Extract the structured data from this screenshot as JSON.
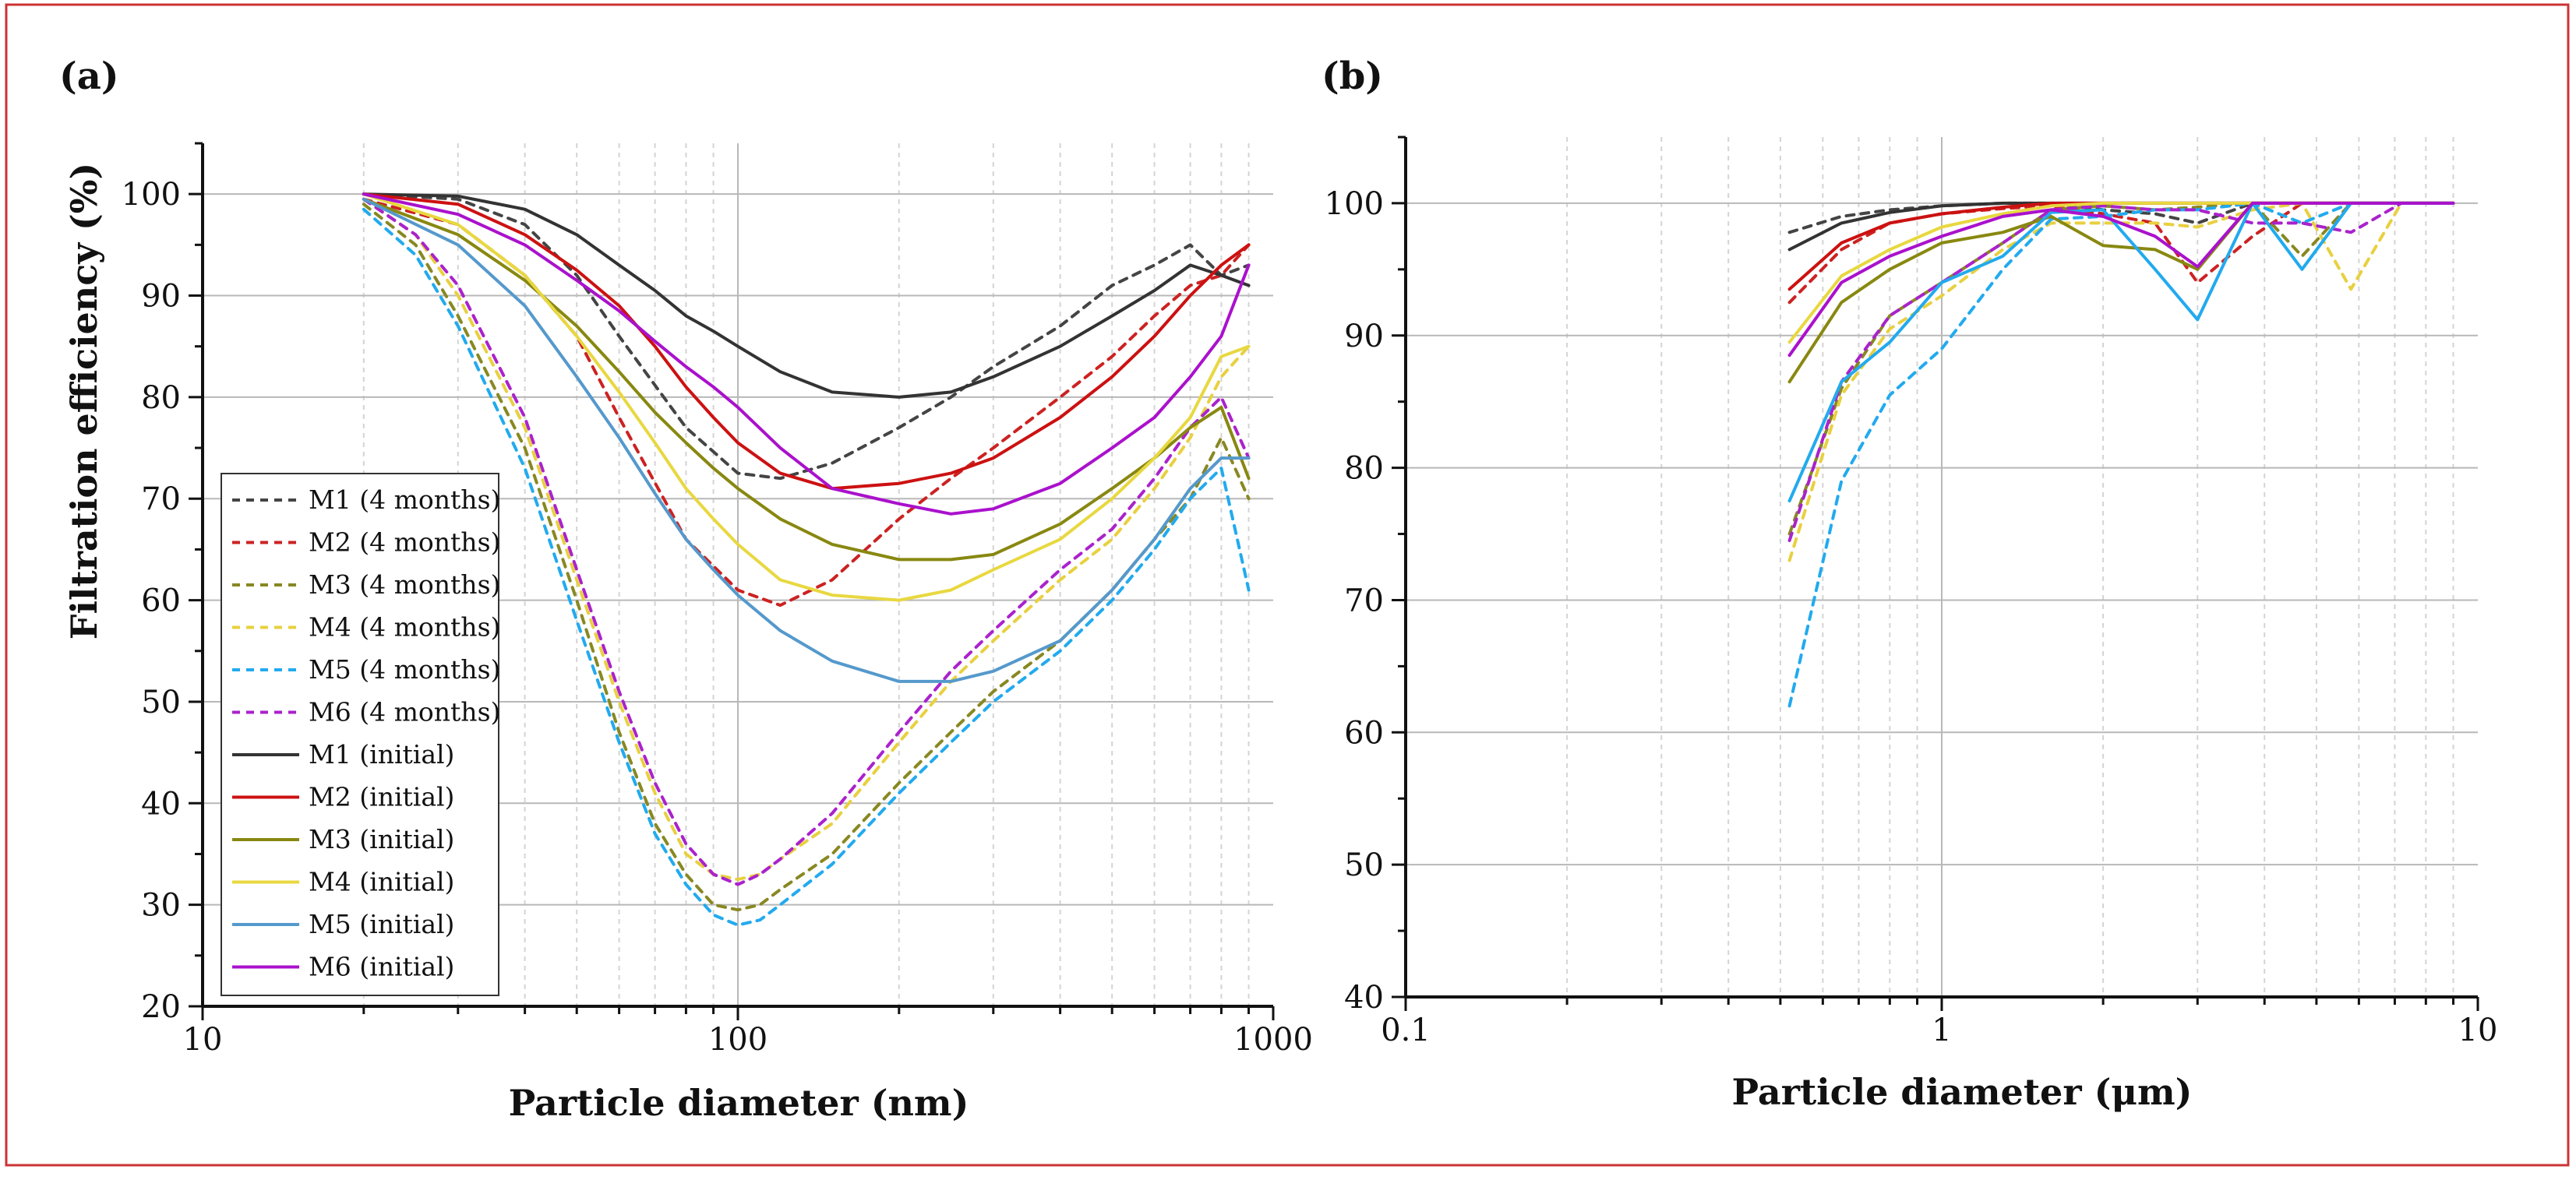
{
  "figure": {
    "border_color": "#cc3333"
  },
  "chart_data": [
    {
      "panel_label": "(a)",
      "type": "line",
      "xscale": "log",
      "xlim": [
        10,
        1000
      ],
      "ylim": [
        20,
        105
      ],
      "xlabel": "Particle diameter (nm)",
      "ylabel": "Filtration efficiency (%)",
      "xticks": [
        10,
        100,
        1000
      ],
      "xtick_labels": [
        "10",
        "100",
        "1000"
      ],
      "yticks": [
        20,
        30,
        40,
        50,
        60,
        70,
        80,
        90,
        100
      ],
      "ytick_labels": [
        "20",
        "30",
        "40",
        "50",
        "60",
        "70",
        "80",
        "90",
        "100"
      ],
      "grid": true,
      "legend_position": "lower-left",
      "series": [
        {
          "name": "M1 (4 months)",
          "color": "#444444",
          "style": "dashed",
          "x": [
            20,
            30,
            40,
            50,
            60,
            80,
            100,
            120,
            150,
            200,
            250,
            300,
            400,
            500,
            600,
            700,
            800,
            900
          ],
          "y": [
            100,
            99.5,
            97,
            92,
            86,
            77,
            72.5,
            72,
            73.5,
            77,
            80,
            83,
            87,
            91,
            93,
            95,
            92,
            93
          ]
        },
        {
          "name": "M2 (4 months)",
          "color": "#cc2222",
          "style": "dashed",
          "x": [
            20,
            30,
            40,
            50,
            60,
            80,
            100,
            120,
            150,
            200,
            250,
            300,
            400,
            500,
            600,
            700,
            800,
            900
          ],
          "y": [
            99.5,
            97,
            92,
            86,
            78,
            66,
            61,
            59.5,
            62,
            68,
            72,
            75,
            80,
            84,
            88,
            91,
            92,
            95
          ]
        },
        {
          "name": "M3 (4 months)",
          "color": "#888822",
          "style": "dashed",
          "x": [
            20,
            25,
            30,
            40,
            50,
            60,
            70,
            80,
            90,
            100,
            110,
            120,
            150,
            200,
            250,
            300,
            400,
            500,
            600,
            700,
            800,
            900
          ],
          "y": [
            99,
            95,
            88,
            75,
            60,
            47,
            38,
            33,
            30,
            29.5,
            30,
            31.5,
            35,
            42,
            47,
            51,
            56,
            61,
            66,
            70,
            76,
            70
          ]
        },
        {
          "name": "M4 (4 months)",
          "color": "#e8d040",
          "style": "dashed",
          "x": [
            20,
            25,
            30,
            40,
            50,
            60,
            70,
            80,
            90,
            100,
            110,
            120,
            150,
            200,
            250,
            300,
            400,
            500,
            600,
            700,
            800,
            900
          ],
          "y": [
            99.5,
            96,
            90,
            77,
            62,
            50,
            41,
            35,
            33,
            32.5,
            33,
            34.5,
            38,
            46,
            52,
            56,
            62,
            66,
            71,
            76,
            82,
            85
          ]
        },
        {
          "name": "M5 (4 months)",
          "color": "#22aaee",
          "style": "dashed",
          "x": [
            20,
            25,
            30,
            40,
            50,
            60,
            70,
            80,
            90,
            100,
            110,
            120,
            150,
            200,
            250,
            300,
            400,
            500,
            600,
            700,
            800,
            900
          ],
          "y": [
            98.5,
            94,
            87,
            73,
            58,
            46,
            37,
            32,
            29,
            28,
            28.5,
            30,
            34,
            41,
            46,
            50,
            55,
            60,
            65,
            70,
            73,
            61
          ]
        },
        {
          "name": "M6 (4 months)",
          "color": "#aa22cc",
          "style": "dashed",
          "x": [
            20,
            25,
            30,
            40,
            50,
            60,
            70,
            80,
            90,
            100,
            110,
            120,
            150,
            200,
            250,
            300,
            400,
            500,
            600,
            700,
            800,
            900
          ],
          "y": [
            99.5,
            96,
            91,
            78,
            63,
            51,
            42,
            36,
            33,
            32,
            33,
            34.5,
            39,
            47,
            53,
            57,
            63,
            67,
            72,
            77,
            80,
            74
          ]
        },
        {
          "name": "M1 (initial)",
          "color": "#333333",
          "style": "solid",
          "x": [
            20,
            30,
            40,
            50,
            60,
            70,
            80,
            90,
            100,
            120,
            150,
            200,
            250,
            300,
            400,
            500,
            600,
            700,
            800,
            900
          ],
          "y": [
            100,
            99.8,
            98.5,
            96,
            93,
            90.5,
            88,
            86.5,
            85,
            82.5,
            80.5,
            80,
            80.5,
            82,
            85,
            88,
            90.5,
            93,
            92,
            91
          ]
        },
        {
          "name": "M2 (initial)",
          "color": "#cc1111",
          "style": "solid",
          "x": [
            20,
            30,
            40,
            50,
            60,
            70,
            80,
            90,
            100,
            120,
            150,
            200,
            250,
            300,
            400,
            500,
            600,
            700,
            800,
            900
          ],
          "y": [
            100,
            99,
            96,
            92.5,
            89,
            85,
            81,
            78,
            75.5,
            72.5,
            71,
            71.5,
            72.5,
            74,
            78,
            82,
            86,
            90,
            93,
            95
          ]
        },
        {
          "name": "M3 (initial)",
          "color": "#888811",
          "style": "solid",
          "x": [
            20,
            30,
            40,
            50,
            60,
            70,
            80,
            90,
            100,
            120,
            150,
            200,
            250,
            300,
            400,
            500,
            600,
            700,
            800,
            900
          ],
          "y": [
            99.5,
            96,
            91.5,
            87,
            82.5,
            78.5,
            75.5,
            73,
            71,
            68,
            65.5,
            64,
            64,
            64.5,
            67.5,
            71,
            74,
            77,
            79,
            72
          ]
        },
        {
          "name": "M4 (initial)",
          "color": "#e8d840",
          "style": "solid",
          "x": [
            20,
            30,
            40,
            50,
            60,
            70,
            80,
            90,
            100,
            120,
            150,
            200,
            250,
            300,
            400,
            500,
            600,
            700,
            800,
            900
          ],
          "y": [
            100,
            97,
            92,
            86,
            80.5,
            75.5,
            71,
            68,
            65.5,
            62,
            60.5,
            60,
            61,
            63,
            66,
            70,
            74,
            78,
            84,
            85
          ]
        },
        {
          "name": "M5 (initial)",
          "color": "#5599cc",
          "style": "solid",
          "x": [
            20,
            30,
            40,
            50,
            60,
            70,
            80,
            90,
            100,
            120,
            150,
            200,
            250,
            300,
            400,
            500,
            600,
            700,
            800,
            900
          ],
          "y": [
            99.5,
            95,
            89,
            82,
            76,
            70.5,
            66,
            63,
            60.5,
            57,
            54,
            52,
            52,
            53,
            56,
            61,
            66,
            71,
            74,
            74
          ]
        },
        {
          "name": "M6 (initial)",
          "color": "#aa11cc",
          "style": "solid",
          "x": [
            20,
            30,
            40,
            50,
            60,
            70,
            80,
            90,
            100,
            120,
            150,
            200,
            250,
            300,
            400,
            500,
            600,
            700,
            800,
            900
          ],
          "y": [
            100,
            98,
            95,
            91.5,
            88.5,
            85.5,
            83,
            81,
            79,
            75,
            71,
            69.5,
            68.5,
            69,
            71.5,
            75,
            78,
            82,
            86,
            93
          ]
        }
      ],
      "legend": [
        "M1 (4 months)",
        "M2 (4 months)",
        "M3 (4 months)",
        "M4 (4 months)",
        "M5 (4 months)",
        "M6 (4 months)",
        "M1 (initial)",
        "M2 (initial)",
        "M3 (initial)",
        "M4 (initial)",
        "M5 (initial)",
        "M6 (initial)"
      ]
    },
    {
      "panel_label": "(b)",
      "type": "line",
      "xscale": "log",
      "xlim": [
        0.1,
        10
      ],
      "ylim": [
        40,
        105
      ],
      "xlabel": "Particle diameter (μm)",
      "ylabel": "",
      "xticks": [
        0.1,
        1,
        10
      ],
      "xtick_labels": [
        "0.1",
        "1",
        "10"
      ],
      "yticks": [
        40,
        50,
        60,
        70,
        80,
        90,
        100
      ],
      "ytick_labels": [
        "40",
        "50",
        "60",
        "70",
        "80",
        "90",
        "100"
      ],
      "grid": true,
      "series": [
        {
          "name": "M1 (4 months)",
          "color": "#444444",
          "style": "dashed",
          "x": [
            0.52,
            0.65,
            0.8,
            1,
            1.3,
            1.6,
            2,
            2.5,
            3,
            3.8,
            4.7,
            5.8,
            7.2,
            9
          ],
          "y": [
            97.8,
            99,
            99.5,
            99.8,
            100,
            100,
            99.5,
            99.2,
            98.5,
            100,
            100,
            100,
            100,
            100
          ]
        },
        {
          "name": "M2 (4 months)",
          "color": "#cc2222",
          "style": "dashed",
          "x": [
            0.52,
            0.65,
            0.8,
            1,
            1.3,
            1.6,
            2,
            2.5,
            3,
            3.8,
            4.7,
            5.8,
            7.2,
            9
          ],
          "y": [
            92.5,
            96.5,
            98.5,
            99.2,
            99.6,
            99.8,
            99.2,
            98.5,
            94,
            97.5,
            100,
            100,
            100,
            100
          ]
        },
        {
          "name": "M3 (4 months)",
          "color": "#888822",
          "style": "dashed",
          "x": [
            0.52,
            0.65,
            0.8,
            1,
            1.3,
            1.6,
            2,
            2.5,
            3,
            3.8,
            4.7,
            5.8,
            7.2,
            9
          ],
          "y": [
            75,
            86,
            91.5,
            94,
            97,
            99.5,
            99.8,
            99.5,
            99.7,
            100,
            96,
            100,
            100,
            100
          ]
        },
        {
          "name": "M4 (4 months)",
          "color": "#e8d040",
          "style": "dashed",
          "x": [
            0.52,
            0.65,
            0.8,
            1,
            1.3,
            1.6,
            2,
            2.5,
            3,
            3.8,
            4.7,
            5.8,
            7.2,
            9
          ],
          "y": [
            73,
            85.5,
            90.5,
            93,
            96.5,
            98.5,
            98.5,
            98.5,
            98.2,
            99.5,
            100,
            93.5,
            100,
            100
          ]
        },
        {
          "name": "M5 (4 months)",
          "color": "#22aaee",
          "style": "dashed",
          "x": [
            0.52,
            0.65,
            0.8,
            1,
            1.3,
            1.6,
            2,
            2.5,
            3,
            3.8,
            4.7,
            5.8,
            7.2,
            9
          ],
          "y": [
            62,
            79,
            85.5,
            89,
            95,
            98.8,
            99,
            99.5,
            99.5,
            100,
            98.5,
            100,
            100,
            100
          ]
        },
        {
          "name": "M6 (4 months)",
          "color": "#aa22cc",
          "style": "dashed",
          "x": [
            0.52,
            0.65,
            0.8,
            1,
            1.3,
            1.6,
            2,
            2.5,
            3,
            3.8,
            4.7,
            5.8,
            7.2,
            9
          ],
          "y": [
            74.5,
            86.5,
            91.5,
            94,
            97,
            99.5,
            99.8,
            99.5,
            99.5,
            98.5,
            98.5,
            97.8,
            100,
            100
          ]
        },
        {
          "name": "M1 (initial)",
          "color": "#333333",
          "style": "solid",
          "x": [
            0.52,
            0.65,
            0.8,
            1,
            1.3,
            1.6,
            2,
            2.5,
            3,
            3.8,
            4.7,
            5.8,
            7.2,
            9
          ],
          "y": [
            96.5,
            98.5,
            99.3,
            99.8,
            100,
            100,
            100,
            100,
            100,
            100,
            100,
            100,
            100,
            100
          ]
        },
        {
          "name": "M2 (initial)",
          "color": "#cc1111",
          "style": "solid",
          "x": [
            0.52,
            0.65,
            0.8,
            1,
            1.3,
            1.6,
            2,
            2.5,
            3,
            3.8,
            4.7,
            5.8,
            7.2,
            9
          ],
          "y": [
            93.5,
            97,
            98.5,
            99.2,
            99.7,
            100,
            100,
            100,
            100,
            100,
            100,
            100,
            100,
            100
          ]
        },
        {
          "name": "M3 (initial)",
          "color": "#888811",
          "style": "solid",
          "x": [
            0.52,
            0.65,
            0.8,
            1,
            1.3,
            1.6,
            2,
            2.5,
            3,
            3.8,
            4.7,
            5.8,
            7.2,
            9
          ],
          "y": [
            86.5,
            92.5,
            95,
            97,
            97.8,
            99,
            96.8,
            96.5,
            95,
            100,
            100,
            100,
            100,
            100
          ]
        },
        {
          "name": "M4 (initial)",
          "color": "#e8d840",
          "style": "solid",
          "x": [
            0.52,
            0.65,
            0.8,
            1,
            1.3,
            1.6,
            2,
            2.5,
            3,
            3.8,
            4.7,
            5.8,
            7.2,
            9
          ],
          "y": [
            89.5,
            94.5,
            96.5,
            98.2,
            99.2,
            99.8,
            100,
            100,
            100,
            100,
            100,
            100,
            100,
            100
          ]
        },
        {
          "name": "M5 (initial)",
          "color": "#22aaee",
          "style": "solid",
          "x": [
            0.52,
            0.65,
            0.8,
            1,
            1.3,
            1.6,
            2,
            2.5,
            3,
            3.8,
            4.7,
            5.8,
            7.2,
            9
          ],
          "y": [
            77.5,
            86.5,
            89.5,
            94,
            96,
            99.3,
            99.5,
            95,
            91.2,
            100,
            95,
            100,
            100,
            100
          ]
        },
        {
          "name": "M6 (initial)",
          "color": "#aa11cc",
          "style": "solid",
          "x": [
            0.52,
            0.65,
            0.8,
            1,
            1.3,
            1.6,
            2,
            2.5,
            3,
            3.8,
            4.7,
            5.8,
            7.2,
            9
          ],
          "y": [
            88.5,
            94,
            96,
            97.5,
            99,
            99.5,
            99,
            97.5,
            95.2,
            100,
            100,
            100,
            100,
            100
          ]
        }
      ]
    }
  ]
}
